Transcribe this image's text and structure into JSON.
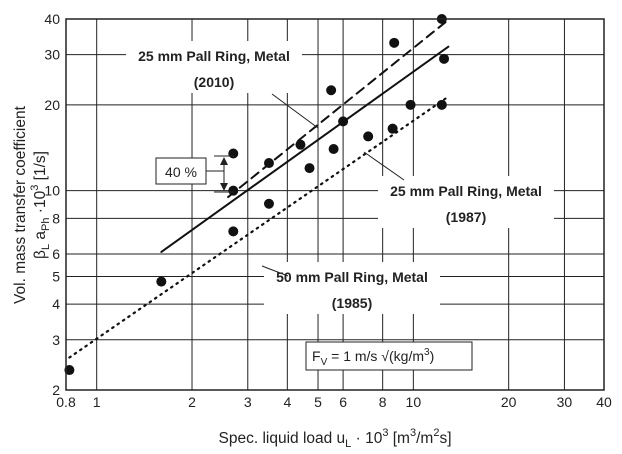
{
  "chart_data": {
    "type": "scatter",
    "xscale": "log",
    "yscale": "log",
    "xlim": [
      0.8,
      40
    ],
    "ylim": [
      2,
      40
    ],
    "grid": true,
    "xlabel": {
      "main": "Spec. liquid load u",
      "sub": "L",
      "after": " · 10",
      "sup": "3",
      "unit_pre": " [m",
      "unit_sup1": "3",
      "unit_mid": "/m",
      "unit_sup2": "2",
      "unit_post": "s]"
    },
    "ylabel": {
      "line1": "Vol. mass transfer coefficient",
      "beta": "β",
      "sub1": "L",
      "a": " a",
      "sub2": "Ph",
      "after": " ·10",
      "sup": "3",
      "unit": " [1/s]"
    },
    "xticks": [
      0.8,
      1,
      2,
      3,
      4,
      5,
      6,
      8,
      10,
      20,
      30,
      40
    ],
    "xtick_labels": [
      "0.8",
      "1",
      "2",
      "3",
      "4",
      "5",
      "6",
      "8",
      "10",
      "20",
      "30",
      "40"
    ],
    "yticks": [
      2,
      3,
      4,
      5,
      6,
      8,
      10,
      20,
      30,
      40
    ],
    "ytick_labels": [
      "2",
      "3",
      "4",
      "5",
      "6",
      "8",
      "10",
      "20",
      "30",
      "40"
    ],
    "series": [
      {
        "name": "25 mm Pall Ring, Metal (2010)",
        "line_style": "dashed",
        "points": [
          {
            "x": 2.7,
            "y": 13.5
          },
          {
            "x": 5.5,
            "y": 22.5
          },
          {
            "x": 8.7,
            "y": 33
          },
          {
            "x": 12.3,
            "y": 40
          }
        ],
        "fit": [
          {
            "x": 2.6,
            "y": 9.5
          },
          {
            "x": 13.0,
            "y": 40
          }
        ]
      },
      {
        "name": "25 mm Pall Ring, Metal (1987)",
        "line_style": "solid",
        "points": [
          {
            "x": 2.7,
            "y": 10
          },
          {
            "x": 3.5,
            "y": 12.5
          },
          {
            "x": 4.4,
            "y": 14.5
          },
          {
            "x": 5.6,
            "y": 14
          },
          {
            "x": 6.0,
            "y": 17.5
          },
          {
            "x": 7.2,
            "y": 15.5
          },
          {
            "x": 9.8,
            "y": 20
          },
          {
            "x": 12.5,
            "y": 29
          }
        ],
        "fit": [
          {
            "x": 1.6,
            "y": 6.1
          },
          {
            "x": 12.9,
            "y": 32
          }
        ]
      },
      {
        "name": "50 mm Pall Ring, Metal (1985)",
        "line_style": "dotted",
        "points": [
          {
            "x": 0.82,
            "y": 2.35
          },
          {
            "x": 1.6,
            "y": 4.8
          },
          {
            "x": 2.7,
            "y": 7.2
          },
          {
            "x": 3.5,
            "y": 9
          },
          {
            "x": 4.7,
            "y": 12
          },
          {
            "x": 8.6,
            "y": 16.5
          },
          {
            "x": 12.3,
            "y": 20
          }
        ],
        "fit": [
          {
            "x": 0.82,
            "y": 2.6
          },
          {
            "x": 13.0,
            "y": 21.5
          }
        ]
      }
    ],
    "annotations": {
      "label_2010_line1": "25 mm Pall Ring, Metal",
      "label_2010_line2": "(2010)",
      "label_1987_line1": "25 mm Pall Ring, Metal",
      "label_1987_line2": "(1987)",
      "label_1985_line1": "50 mm Pall Ring, Metal",
      "label_1985_line2": "(1985)",
      "percent_box": "40 %",
      "fv_main": "F",
      "fv_sub": "V",
      "fv_rest": " = 1 m/s √(kg/m",
      "fv_sup": "3",
      "fv_close": ")"
    }
  }
}
